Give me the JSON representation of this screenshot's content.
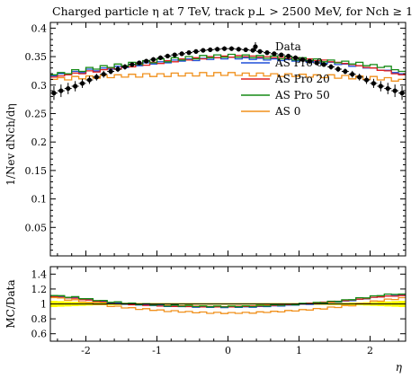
{
  "chart_data": {
    "type": "line",
    "title": "Charged particle η at 7 TeV, track p⊥ > 2500 MeV, for Nch ≥ 1",
    "xlabel": "η",
    "main": {
      "ylabel": "1/Nev dNch/dη",
      "ylim": [
        0,
        0.41
      ],
      "yticks": [
        0.05,
        0.1,
        0.15,
        0.2,
        0.25,
        0.3,
        0.35,
        0.4
      ],
      "ytick_labels": [
        "0.05",
        "0.1",
        "0.15",
        "0.2",
        "0.25",
        "0.3",
        "0.35",
        "0.4"
      ]
    },
    "ratio": {
      "ylabel": "MC/Data",
      "ylim": [
        0.5,
        1.5
      ],
      "yticks": [
        0.6,
        0.8,
        1.0,
        1.2,
        1.4
      ],
      "ytick_labels": [
        "0.6",
        "0.8",
        "1",
        "1.2",
        "1.4"
      ]
    },
    "xlim": [
      -2.5,
      2.5
    ],
    "xticks": [
      -2,
      -1,
      0,
      1,
      2
    ],
    "xtick_labels": [
      "-2",
      "-1",
      "0",
      "1",
      "2"
    ],
    "legend_position": "top-right",
    "x": [
      -2.45,
      -2.35,
      -2.25,
      -2.15,
      -2.05,
      -1.95,
      -1.85,
      -1.75,
      -1.65,
      -1.55,
      -1.45,
      -1.35,
      -1.25,
      -1.15,
      -1.05,
      -0.95,
      -0.85,
      -0.75,
      -0.65,
      -0.55,
      -0.45,
      -0.35,
      -0.25,
      -0.15,
      -0.05,
      0.05,
      0.15,
      0.25,
      0.35,
      0.45,
      0.55,
      0.65,
      0.75,
      0.85,
      0.95,
      1.05,
      1.15,
      1.25,
      1.35,
      1.45,
      1.55,
      1.65,
      1.75,
      1.85,
      1.95,
      2.05,
      2.15,
      2.25,
      2.35,
      2.45
    ],
    "data": {
      "name": "Data",
      "values": [
        0.286,
        0.29,
        0.294,
        0.298,
        0.303,
        0.309,
        0.314,
        0.319,
        0.324,
        0.328,
        0.332,
        0.336,
        0.339,
        0.342,
        0.345,
        0.348,
        0.351,
        0.353,
        0.355,
        0.357,
        0.359,
        0.361,
        0.362,
        0.363,
        0.364,
        0.364,
        0.363,
        0.362,
        0.361,
        0.359,
        0.357,
        0.355,
        0.353,
        0.351,
        0.348,
        0.345,
        0.342,
        0.339,
        0.336,
        0.332,
        0.328,
        0.324,
        0.319,
        0.314,
        0.309,
        0.303,
        0.298,
        0.294,
        0.29,
        0.286
      ],
      "errors": [
        0.012,
        0.011,
        0.01,
        0.009,
        0.008,
        0.007,
        0.006,
        0.006,
        0.005,
        0.005,
        0.005,
        0.004,
        0.004,
        0.004,
        0.004,
        0.004,
        0.004,
        0.004,
        0.004,
        0.004,
        0.004,
        0.004,
        0.004,
        0.004,
        0.004,
        0.004,
        0.004,
        0.004,
        0.004,
        0.004,
        0.004,
        0.004,
        0.004,
        0.004,
        0.004,
        0.004,
        0.004,
        0.004,
        0.004,
        0.005,
        0.005,
        0.005,
        0.006,
        0.006,
        0.007,
        0.008,
        0.009,
        0.01,
        0.011,
        0.012
      ],
      "color": "#000000"
    },
    "series": [
      {
        "name": "AS Pro 0",
        "color": "#1f4fd8",
        "values": [
          0.316,
          0.32,
          0.318,
          0.324,
          0.322,
          0.328,
          0.325,
          0.33,
          0.328,
          0.333,
          0.331,
          0.336,
          0.334,
          0.339,
          0.337,
          0.341,
          0.339,
          0.344,
          0.342,
          0.346,
          0.343,
          0.347,
          0.345,
          0.348,
          0.346,
          0.349,
          0.346,
          0.348,
          0.345,
          0.347,
          0.344,
          0.346,
          0.343,
          0.345,
          0.342,
          0.344,
          0.34,
          0.342,
          0.338,
          0.34,
          0.336,
          0.337,
          0.333,
          0.334,
          0.33,
          0.33,
          0.326,
          0.326,
          0.322,
          0.32
        ]
      },
      {
        "name": "AS Pro 20",
        "color": "#e02020",
        "values": [
          0.314,
          0.316,
          0.318,
          0.321,
          0.32,
          0.325,
          0.323,
          0.327,
          0.33,
          0.328,
          0.334,
          0.332,
          0.337,
          0.335,
          0.34,
          0.338,
          0.343,
          0.341,
          0.346,
          0.344,
          0.348,
          0.346,
          0.35,
          0.348,
          0.351,
          0.349,
          0.352,
          0.35,
          0.351,
          0.349,
          0.35,
          0.348,
          0.349,
          0.347,
          0.348,
          0.345,
          0.346,
          0.343,
          0.344,
          0.341,
          0.34,
          0.338,
          0.336,
          0.334,
          0.331,
          0.33,
          0.326,
          0.325,
          0.32,
          0.318
        ]
      },
      {
        "name": "AS Pro 50",
        "color": "#158a15",
        "values": [
          0.318,
          0.322,
          0.32,
          0.327,
          0.324,
          0.331,
          0.328,
          0.334,
          0.331,
          0.337,
          0.334,
          0.34,
          0.336,
          0.343,
          0.339,
          0.346,
          0.341,
          0.348,
          0.344,
          0.35,
          0.346,
          0.352,
          0.348,
          0.353,
          0.349,
          0.354,
          0.349,
          0.353,
          0.348,
          0.352,
          0.347,
          0.351,
          0.346,
          0.35,
          0.344,
          0.348,
          0.343,
          0.346,
          0.341,
          0.344,
          0.339,
          0.342,
          0.337,
          0.34,
          0.334,
          0.336,
          0.331,
          0.333,
          0.327,
          0.324
        ]
      },
      {
        "name": "AS 0",
        "color": "#f0901c",
        "values": [
          0.31,
          0.313,
          0.309,
          0.315,
          0.311,
          0.316,
          0.312,
          0.317,
          0.313,
          0.318,
          0.314,
          0.319,
          0.314,
          0.32,
          0.315,
          0.32,
          0.315,
          0.321,
          0.316,
          0.321,
          0.316,
          0.322,
          0.316,
          0.322,
          0.317,
          0.322,
          0.317,
          0.321,
          0.316,
          0.321,
          0.316,
          0.32,
          0.315,
          0.32,
          0.315,
          0.319,
          0.314,
          0.318,
          0.313,
          0.318,
          0.312,
          0.317,
          0.311,
          0.316,
          0.31,
          0.315,
          0.309,
          0.313,
          0.307,
          0.31
        ]
      }
    ]
  }
}
